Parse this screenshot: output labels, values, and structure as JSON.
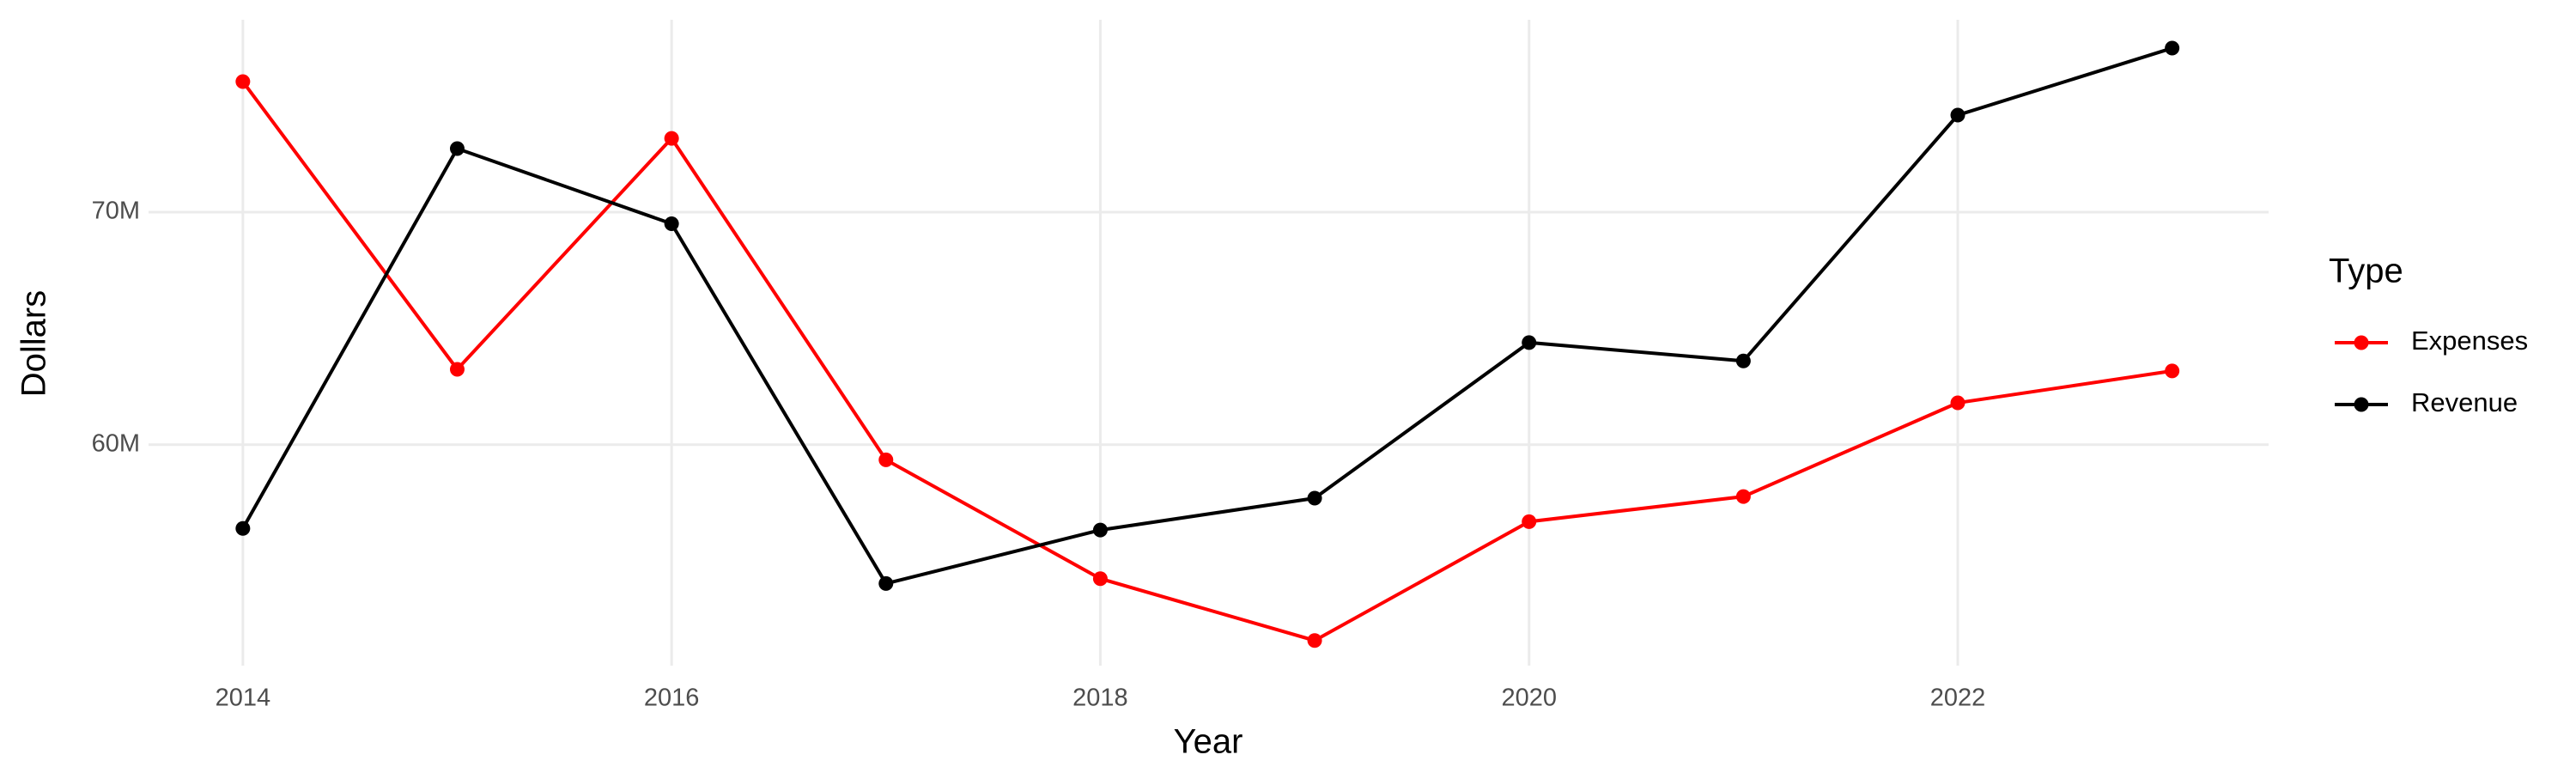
{
  "chart_data": {
    "type": "line",
    "x_label": "Year",
    "y_label": "Dollars",
    "x": [
      2014,
      2015,
      2016,
      2017,
      2018,
      2019,
      2020,
      2021,
      2022,
      2023
    ],
    "series": [
      {
        "name": "Expenses",
        "color": "#ff0000",
        "values": [
          75610000,
          63240000,
          73170000,
          59350000,
          54240000,
          51580000,
          56690000,
          57770000,
          61800000,
          63170000
        ]
      },
      {
        "name": "Revenue",
        "color": "#000000",
        "values": [
          56400000,
          72730000,
          69500000,
          54030000,
          56330000,
          57700000,
          64390000,
          63600000,
          74170000,
          77050000
        ]
      }
    ],
    "xlim": [
      2013.56,
      2023.45
    ],
    "xticks": [
      2014,
      2016,
      2018,
      2020,
      2022
    ],
    "ylim": [
      50500000,
      78270000
    ],
    "yticks": [
      {
        "value": 60000000,
        "label": "60M"
      },
      {
        "value": 70000000,
        "label": "70M"
      }
    ],
    "grid": true,
    "legend_title": "Type",
    "legend_position": "right"
  }
}
